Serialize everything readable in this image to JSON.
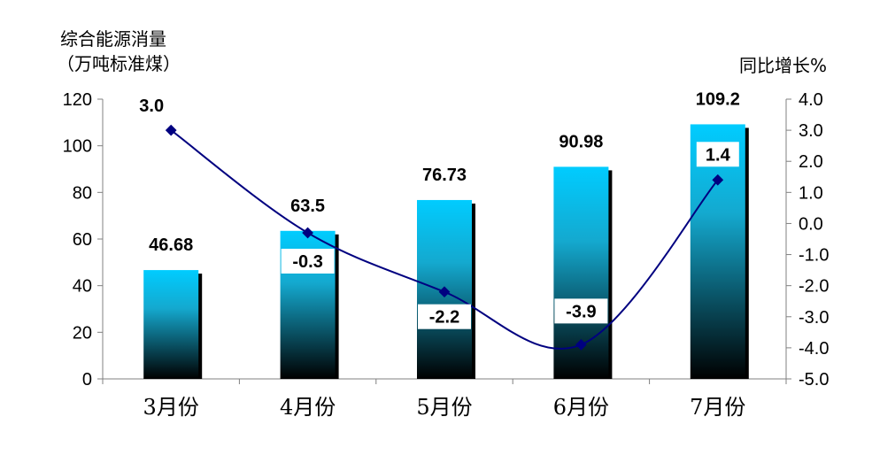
{
  "chart_data": {
    "type": "bar+line",
    "categories": [
      "3月份",
      "4月份",
      "5月份",
      "6月份",
      "7月份"
    ],
    "y_left": {
      "label_line1": "综合能源消量",
      "label_line2": "（万吨标准煤）",
      "ylim": [
        0,
        120
      ],
      "ticks": [
        "0",
        "20",
        "40",
        "60",
        "80",
        "100",
        "120"
      ]
    },
    "y_right": {
      "label": "同比增长%",
      "ylim": [
        -5.0,
        4.0
      ],
      "ticks": [
        "-5.0",
        "-4.0",
        "-3.0",
        "-2.0",
        "-1.0",
        "0.0",
        "1.0",
        "2.0",
        "3.0",
        "4.0"
      ]
    },
    "bar_series": {
      "values": [
        46.68,
        63.5,
        76.73,
        90.98,
        109.2
      ],
      "labels": [
        "46.68",
        "63.5",
        "76.73",
        "90.98",
        "109.2"
      ]
    },
    "line_series": {
      "values": [
        3.0,
        -0.3,
        -2.2,
        -3.9,
        1.4
      ],
      "labels": [
        "3.0",
        "-0.3",
        "-2.2",
        "-3.9",
        "1.4"
      ]
    },
    "colors": {
      "bar_top": "#00ccff",
      "bar_bottom": "#000000",
      "bar_shadow": "#000000",
      "line": "#000080",
      "axis": "#808080"
    }
  }
}
